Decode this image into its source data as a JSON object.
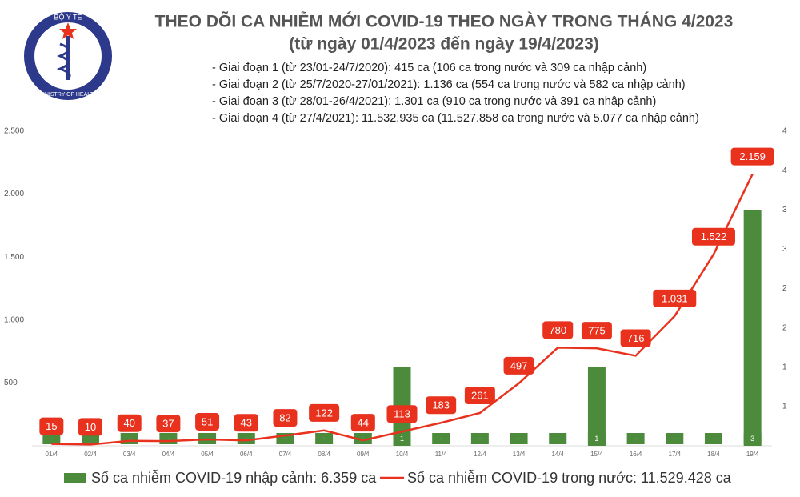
{
  "logo": {
    "top": "BỘ Y TẾ",
    "bottom": "MINISTRY OF HEALTH"
  },
  "chart_data": {
    "type": "bar-line",
    "title": "THEO DÕI CA NHIỄM MỚI COVID-19 THEO NGÀY TRONG THÁNG 4/2023",
    "subtitle": "(từ ngày 01/4/2023 đến ngày 19/4/2023)",
    "notes": [
      "- Giai đoạn 1 (từ 23/01-24/7/2020): 415 ca (106 ca trong nước và 309 ca nhập cảnh)",
      "- Giai đoạn 2 (từ 25/7/2020-27/01/2021): 1.136 ca (554 ca trong nước và 582 ca nhập cảnh)",
      "- Giai đoạn 3 (từ 28/01-26/4/2021): 1.301 ca (910 ca trong nước và 391 ca nhập cảnh)",
      "- Giai đoạn 4 (từ 27/4/2021): 11.532.935 ca (11.527.858 ca trong nước và 5.077 ca nhập cảnh)"
    ],
    "categories": [
      "01/4",
      "02/4",
      "03/4",
      "04/4",
      "05/4",
      "06/4",
      "07/4",
      "08/4",
      "09/4",
      "10/4",
      "11/4",
      "12/4",
      "13/4",
      "14/4",
      "15/4",
      "16/4",
      "17/4",
      "18/4",
      "19/4"
    ],
    "series": [
      {
        "name": "Số ca nhiễm COVID-19 nhập cảnh: 6.359 ca",
        "type": "bar",
        "axis": "y2",
        "color": "#4b8b3b",
        "values": [
          0,
          0,
          0,
          0,
          0,
          0,
          0,
          0,
          0,
          1,
          0,
          0,
          0,
          0,
          1,
          0,
          0,
          0,
          3
        ],
        "value_labels": [
          "-",
          "-",
          "-",
          "-",
          "-",
          "-",
          "-",
          "-",
          "-",
          "1",
          "-",
          "-",
          "-",
          "-",
          "1",
          "-",
          "-",
          "-",
          "3"
        ]
      },
      {
        "name": "Số ca nhiễm COVID-19 trong nước: 11.529.428 ca",
        "type": "line",
        "color": "#e8321e",
        "values": [
          15,
          10,
          40,
          37,
          51,
          43,
          82,
          122,
          44,
          113,
          183,
          261,
          497,
          780,
          775,
          716,
          1031,
          1522,
          2159
        ],
        "value_labels": [
          "15",
          "10",
          "40",
          "37",
          "51",
          "43",
          "82",
          "122",
          "44",
          "113",
          "183",
          "261",
          "497",
          "780",
          "775",
          "716",
          "1.031",
          "1.522",
          "2.159"
        ]
      }
    ],
    "ylim": [
      0,
      2500
    ],
    "yticks": [
      500,
      {
        "value": 1000,
        "label": "1.000"
      },
      {
        "value": 1500,
        "label": "1.500"
      },
      {
        "value": 2000,
        "label": "2.000"
      },
      {
        "value": 2500,
        "label": "2.500"
      }
    ],
    "y2lim": [
      0,
      4
    ],
    "y2ticks": [
      {
        "value": 0.5,
        "label": "1"
      },
      1,
      {
        "value": 1.5,
        "label": "2"
      },
      2,
      {
        "value": 2.5,
        "label": "3"
      },
      3,
      {
        "value": 3.5,
        "label": "4"
      },
      4
    ],
    "grid": false
  }
}
